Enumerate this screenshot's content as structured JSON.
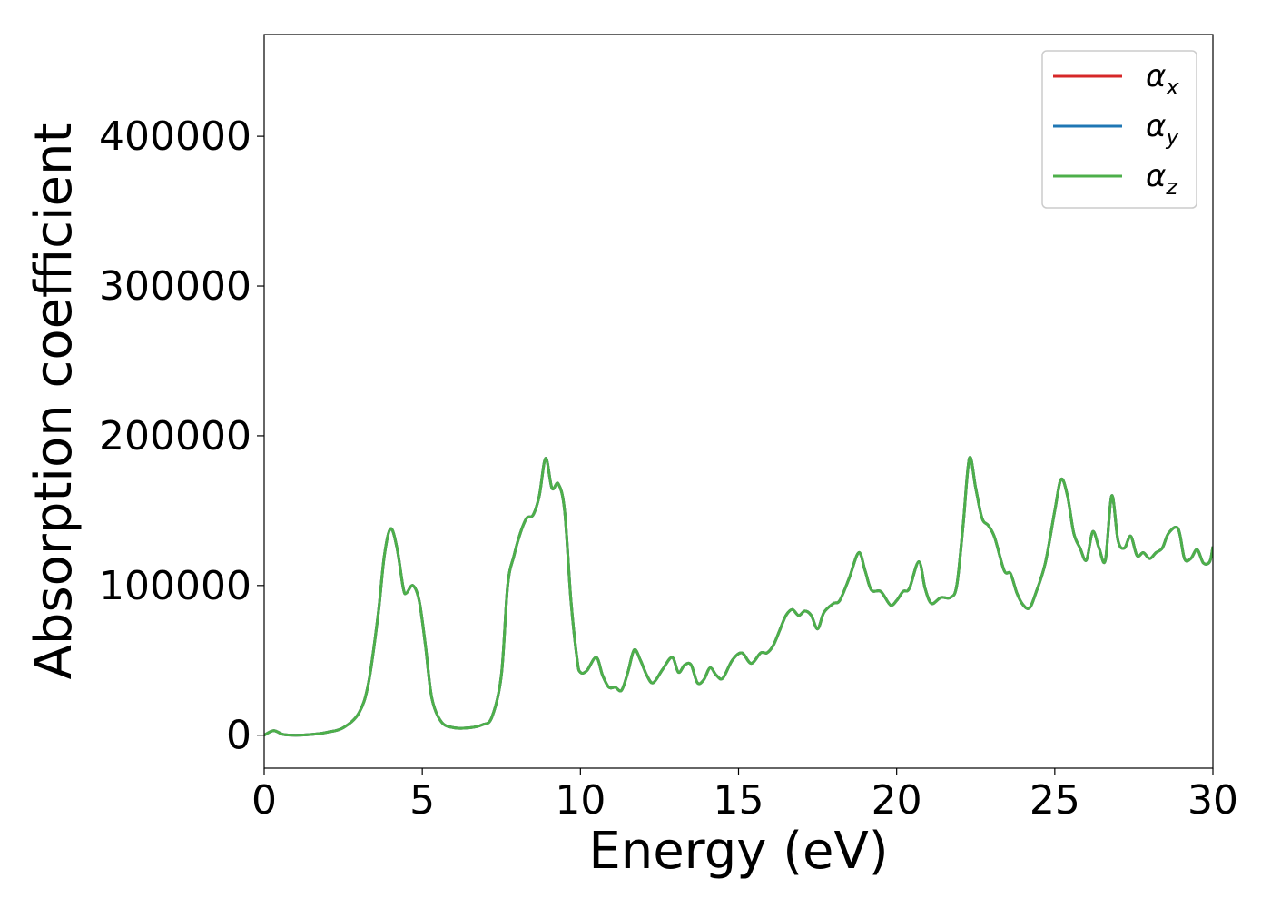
{
  "chart_data": {
    "type": "line",
    "title": "",
    "xlabel": "Energy (eV)",
    "ylabel": "Absorption coefficient",
    "xlim": [
      0,
      30
    ],
    "ylim": [
      -22000,
      468000
    ],
    "xticks": [
      0,
      5,
      10,
      15,
      20,
      25,
      30
    ],
    "xtick_labels": [
      "0",
      "5",
      "10",
      "15",
      "20",
      "25",
      "30"
    ],
    "yticks": [
      0,
      100000,
      200000,
      300000,
      400000
    ],
    "ytick_labels": [
      "0",
      "100000",
      "200000",
      "300000",
      "400000"
    ],
    "grid": false,
    "legend_placement": "top-right",
    "series": [
      {
        "name": "α_x",
        "legend_base": "α",
        "legend_sub": "x",
        "color": "#d62728",
        "x": [
          0,
          0.3,
          0.6,
          1,
          1.5,
          2,
          2.5,
          3,
          3.3,
          3.6,
          3.8,
          4.0,
          4.2,
          4.4,
          4.5,
          4.7,
          4.9,
          5.1,
          5.3,
          5.6,
          6,
          6.5,
          6.9,
          7.2,
          7.5,
          7.7,
          7.9,
          8.1,
          8.3,
          8.5,
          8.7,
          8.9,
          9.1,
          9.3,
          9.5,
          9.7,
          9.9,
          10.0,
          10.2,
          10.5,
          10.7,
          10.9,
          11.1,
          11.3,
          11.5,
          11.7,
          11.9,
          12.1,
          12.3,
          12.6,
          12.9,
          13.1,
          13.3,
          13.5,
          13.7,
          13.9,
          14.1,
          14.3,
          14.5,
          14.8,
          15.1,
          15.4,
          15.7,
          15.9,
          16.1,
          16.3,
          16.5,
          16.7,
          16.9,
          17.1,
          17.3,
          17.5,
          17.7,
          18.0,
          18.2,
          18.5,
          18.8,
          19.0,
          19.2,
          19.5,
          19.8,
          20.0,
          20.2,
          20.4,
          20.7,
          20.9,
          21.1,
          21.4,
          21.7,
          21.9,
          22.1,
          22.3,
          22.5,
          22.7,
          22.9,
          23.1,
          23.4,
          23.6,
          23.8,
          24.0,
          24.2,
          24.4,
          24.7,
          25.0,
          25.2,
          25.4,
          25.6,
          25.8,
          26.0,
          26.2,
          26.4,
          26.6,
          26.8,
          27.0,
          27.2,
          27.4,
          27.6,
          27.8,
          28.0,
          28.2,
          28.4,
          28.6,
          28.9,
          29.1,
          29.3,
          29.5,
          29.7,
          29.9,
          30
        ],
        "y": [
          0,
          3000,
          500,
          0,
          500,
          2000,
          5000,
          15000,
          35000,
          80000,
          120000,
          138000,
          125000,
          98000,
          95000,
          100000,
          90000,
          60000,
          25000,
          9000,
          5000,
          5000,
          7000,
          12000,
          40000,
          100000,
          120000,
          135000,
          145000,
          147000,
          160000,
          185000,
          165000,
          168000,
          150000,
          90000,
          50000,
          42000,
          43000,
          52000,
          40000,
          32000,
          32000,
          30000,
          42000,
          57000,
          50000,
          40000,
          35000,
          44000,
          52000,
          42000,
          47000,
          47000,
          35000,
          37000,
          45000,
          40000,
          38000,
          50000,
          55000,
          48000,
          55000,
          55000,
          60000,
          70000,
          80000,
          84000,
          80000,
          83000,
          80000,
          71000,
          82000,
          88000,
          90000,
          105000,
          122000,
          110000,
          97000,
          96000,
          87000,
          90000,
          96000,
          98000,
          116000,
          98000,
          88000,
          92000,
          92000,
          100000,
          140000,
          185000,
          165000,
          145000,
          140000,
          132000,
          110000,
          108000,
          95000,
          87000,
          85000,
          95000,
          115000,
          150000,
          171000,
          160000,
          135000,
          125000,
          117000,
          136000,
          125000,
          117000,
          160000,
          130000,
          125000,
          133000,
          120000,
          122000,
          118000,
          122000,
          125000,
          135000,
          138000,
          118000,
          118000,
          124000,
          115000,
          116000,
          126000
        ]
      },
      {
        "name": "α_y",
        "legend_base": "α",
        "legend_sub": "y",
        "color": "#1f77b4",
        "x": [
          0,
          0.3,
          0.6,
          1,
          1.5,
          2,
          2.5,
          3,
          3.3,
          3.6,
          3.8,
          4.0,
          4.2,
          4.4,
          4.5,
          4.7,
          4.9,
          5.1,
          5.3,
          5.6,
          6,
          6.5,
          6.9,
          7.2,
          7.5,
          7.7,
          7.9,
          8.1,
          8.3,
          8.5,
          8.7,
          8.9,
          9.1,
          9.3,
          9.5,
          9.7,
          9.9,
          10.0,
          10.2,
          10.5,
          10.7,
          10.9,
          11.1,
          11.3,
          11.5,
          11.7,
          11.9,
          12.1,
          12.3,
          12.6,
          12.9,
          13.1,
          13.3,
          13.5,
          13.7,
          13.9,
          14.1,
          14.3,
          14.5,
          14.8,
          15.1,
          15.4,
          15.7,
          15.9,
          16.1,
          16.3,
          16.5,
          16.7,
          16.9,
          17.1,
          17.3,
          17.5,
          17.7,
          18.0,
          18.2,
          18.5,
          18.8,
          19.0,
          19.2,
          19.5,
          19.8,
          20.0,
          20.2,
          20.4,
          20.7,
          20.9,
          21.1,
          21.4,
          21.7,
          21.9,
          22.1,
          22.3,
          22.5,
          22.7,
          22.9,
          23.1,
          23.4,
          23.6,
          23.8,
          24.0,
          24.2,
          24.4,
          24.7,
          25.0,
          25.2,
          25.4,
          25.6,
          25.8,
          26.0,
          26.2,
          26.4,
          26.6,
          26.8,
          27.0,
          27.2,
          27.4,
          27.6,
          27.8,
          28.0,
          28.2,
          28.4,
          28.6,
          28.9,
          29.1,
          29.3,
          29.5,
          29.7,
          29.9,
          30
        ],
        "y": [
          0,
          3000,
          500,
          0,
          500,
          2000,
          5000,
          15000,
          35000,
          80000,
          120000,
          138000,
          125000,
          98000,
          95000,
          100000,
          90000,
          60000,
          25000,
          9000,
          5000,
          5000,
          7000,
          12000,
          40000,
          100000,
          120000,
          135000,
          145000,
          147000,
          160000,
          185000,
          165000,
          168000,
          150000,
          90000,
          50000,
          42000,
          43000,
          52000,
          40000,
          32000,
          32000,
          30000,
          42000,
          57000,
          50000,
          40000,
          35000,
          44000,
          52000,
          42000,
          47000,
          47000,
          35000,
          37000,
          45000,
          40000,
          38000,
          50000,
          55000,
          48000,
          55000,
          55000,
          60000,
          70000,
          80000,
          84000,
          80000,
          83000,
          80000,
          71000,
          82000,
          88000,
          90000,
          105000,
          122000,
          110000,
          97000,
          96000,
          87000,
          90000,
          96000,
          98000,
          116000,
          98000,
          88000,
          92000,
          92000,
          100000,
          140000,
          185000,
          165000,
          145000,
          140000,
          132000,
          110000,
          108000,
          95000,
          87000,
          85000,
          95000,
          115000,
          150000,
          171000,
          160000,
          135000,
          125000,
          117000,
          136000,
          125000,
          117000,
          160000,
          130000,
          125000,
          133000,
          120000,
          122000,
          118000,
          122000,
          125000,
          135000,
          138000,
          118000,
          118000,
          124000,
          115000,
          116000,
          126000
        ]
      },
      {
        "name": "α_z",
        "legend_base": "α",
        "legend_sub": "z",
        "color": "#4daf4a",
        "x": [
          0,
          0.3,
          0.6,
          1,
          1.5,
          2,
          2.5,
          3,
          3.3,
          3.6,
          3.8,
          4.0,
          4.2,
          4.4,
          4.5,
          4.7,
          4.9,
          5.1,
          5.3,
          5.6,
          6,
          6.5,
          6.9,
          7.2,
          7.5,
          7.7,
          7.9,
          8.1,
          8.3,
          8.5,
          8.7,
          8.9,
          9.1,
          9.3,
          9.5,
          9.7,
          9.9,
          10.0,
          10.2,
          10.5,
          10.7,
          10.9,
          11.1,
          11.3,
          11.5,
          11.7,
          11.9,
          12.1,
          12.3,
          12.6,
          12.9,
          13.1,
          13.3,
          13.5,
          13.7,
          13.9,
          14.1,
          14.3,
          14.5,
          14.8,
          15.1,
          15.4,
          15.7,
          15.9,
          16.1,
          16.3,
          16.5,
          16.7,
          16.9,
          17.1,
          17.3,
          17.5,
          17.7,
          18.0,
          18.2,
          18.5,
          18.8,
          19.0,
          19.2,
          19.5,
          19.8,
          20.0,
          20.2,
          20.4,
          20.7,
          20.9,
          21.1,
          21.4,
          21.7,
          21.9,
          22.1,
          22.3,
          22.5,
          22.7,
          22.9,
          23.1,
          23.4,
          23.6,
          23.8,
          24.0,
          24.2,
          24.4,
          24.7,
          25.0,
          25.2,
          25.4,
          25.6,
          25.8,
          26.0,
          26.2,
          26.4,
          26.6,
          26.8,
          27.0,
          27.2,
          27.4,
          27.6,
          27.8,
          28.0,
          28.2,
          28.4,
          28.6,
          28.9,
          29.1,
          29.3,
          29.5,
          29.7,
          29.9,
          30
        ],
        "y": [
          0,
          3000,
          500,
          0,
          500,
          2000,
          5000,
          15000,
          35000,
          80000,
          120000,
          138000,
          125000,
          98000,
          95000,
          100000,
          90000,
          60000,
          25000,
          9000,
          5000,
          5000,
          7000,
          12000,
          40000,
          100000,
          120000,
          135000,
          145000,
          147000,
          160000,
          185000,
          165000,
          168000,
          150000,
          90000,
          50000,
          42000,
          43000,
          52000,
          40000,
          32000,
          32000,
          30000,
          42000,
          57000,
          50000,
          40000,
          35000,
          44000,
          52000,
          42000,
          47000,
          47000,
          35000,
          37000,
          45000,
          40000,
          38000,
          50000,
          55000,
          48000,
          55000,
          55000,
          60000,
          70000,
          80000,
          84000,
          80000,
          83000,
          80000,
          71000,
          82000,
          88000,
          90000,
          105000,
          122000,
          110000,
          97000,
          96000,
          87000,
          90000,
          96000,
          98000,
          116000,
          98000,
          88000,
          92000,
          92000,
          100000,
          140000,
          185000,
          165000,
          145000,
          140000,
          132000,
          110000,
          108000,
          95000,
          87000,
          85000,
          95000,
          115000,
          150000,
          171000,
          160000,
          135000,
          125000,
          117000,
          136000,
          125000,
          117000,
          160000,
          130000,
          125000,
          133000,
          120000,
          122000,
          118000,
          122000,
          125000,
          135000,
          138000,
          118000,
          118000,
          124000,
          115000,
          116000,
          126000
        ]
      }
    ]
  }
}
